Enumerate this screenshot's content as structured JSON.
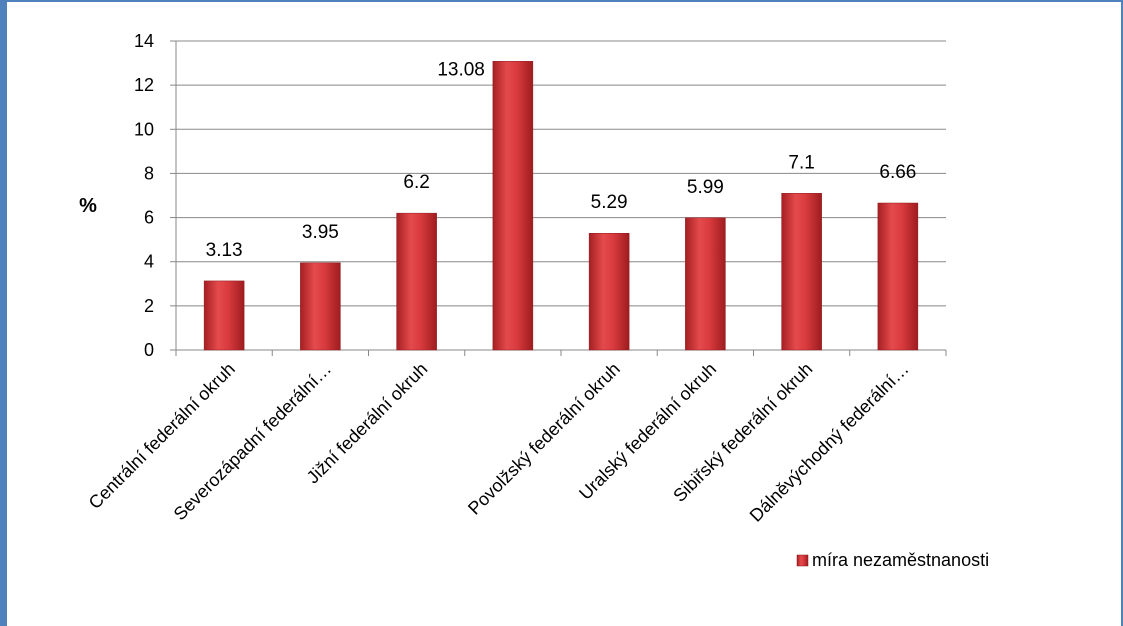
{
  "chart_data": {
    "type": "bar",
    "title": "",
    "xlabel": "",
    "ylabel": "%",
    "ylim": [
      0,
      14
    ],
    "yticks": [
      0,
      2,
      4,
      6,
      8,
      10,
      12,
      14
    ],
    "grid": true,
    "legend_position": "bottom-right",
    "bar_color": "#d2393b",
    "categories": [
      "Centrální federální okruh",
      "Severozápadní federální…",
      "Jižní federální okruh",
      "",
      "Povolžský federální okruh",
      "Uralský federální okruh",
      "Sibiřský federální okruh",
      "Dálněvýchodný federální…"
    ],
    "series": [
      {
        "name": "míra nezaměstnanosti",
        "values": [
          3.13,
          3.95,
          6.2,
          13.08,
          5.29,
          5.99,
          7.1,
          6.66
        ],
        "labels": [
          "3.13",
          "3.95",
          "6.2",
          "13.08",
          "5.29",
          "5.99",
          "7.1",
          "6.66"
        ]
      }
    ]
  }
}
